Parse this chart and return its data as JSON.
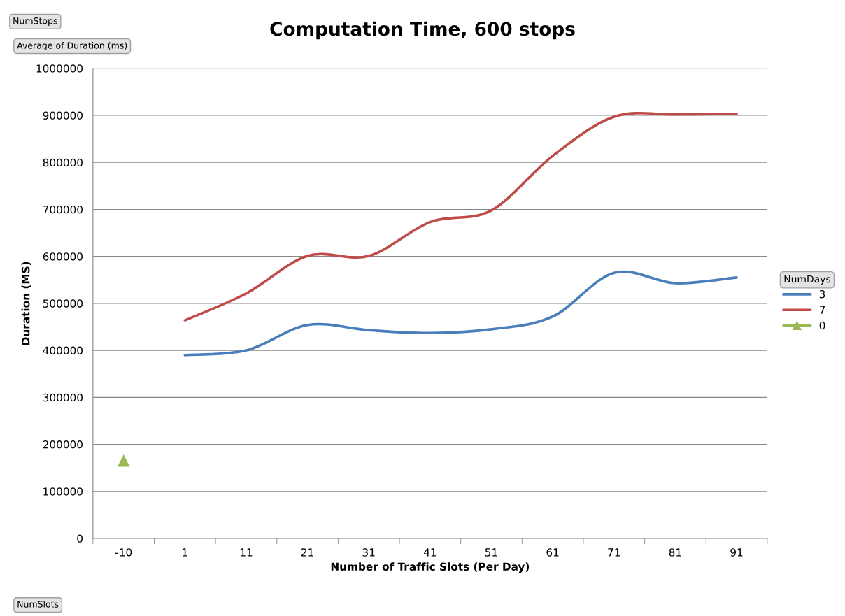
{
  "chart_data": {
    "type": "line",
    "title": "Computation Time, 600 stops",
    "xlabel": "Number of Traffic Slots (Per Day)",
    "ylabel": "Duration (MS)",
    "legend_title": "NumDays",
    "categories": [
      "-10",
      "1",
      "11",
      "21",
      "31",
      "41",
      "51",
      "61",
      "71",
      "81",
      "91"
    ],
    "series": [
      {
        "name": "3",
        "color": "#4a7ebb",
        "marker": "none",
        "values": [
          null,
          390000,
          400000,
          454000,
          443000,
          437000,
          445000,
          472000,
          565000,
          543000,
          555000
        ]
      },
      {
        "name": "7",
        "color": "#be4b48",
        "marker": "none",
        "values": [
          null,
          464000,
          521000,
          601000,
          601000,
          673000,
          698000,
          814000,
          897000,
          902000,
          903000
        ]
      },
      {
        "name": "0",
        "color": "#98b954",
        "marker": "triangle",
        "values": [
          165000,
          null,
          null,
          null,
          null,
          null,
          null,
          null,
          null,
          null,
          null
        ]
      }
    ],
    "ylim": [
      0,
      1000000
    ],
    "yticks": [
      0,
      100000,
      200000,
      300000,
      400000,
      500000,
      600000,
      700000,
      800000,
      900000,
      1000000
    ],
    "grid": "y",
    "legend": "right",
    "annotations": [
      "NumStops",
      "Average of Duration (ms)",
      "NumSlots"
    ]
  }
}
